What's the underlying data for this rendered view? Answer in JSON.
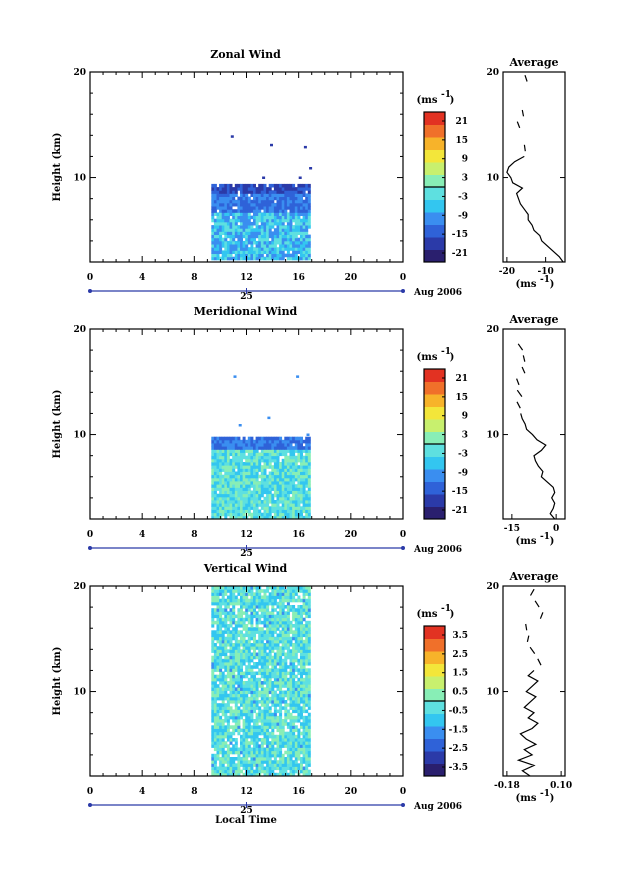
{
  "xlabel": "Local Time",
  "date_label": "Aug 2006",
  "day_label": "25",
  "ylabel": "Height (km)",
  "units": "(ms",
  "units_exp": "-1",
  "average_title": "Average",
  "colors": [
    "#2a1f6e",
    "#2b3aa8",
    "#2f62d8",
    "#3a8ef0",
    "#33c6f0",
    "#5ee0e0",
    "#88eeb6",
    "#c8f06e",
    "#f3e63a",
    "#f7b32a",
    "#f0702a",
    "#e23222"
  ],
  "chart_data": [
    {
      "type": "heatmap",
      "title": "Zonal Wind",
      "x_ticks": [
        "0",
        "4",
        "8",
        "12",
        "16",
        "20",
        "0"
      ],
      "y_ticks": [
        "20",
        "10"
      ],
      "xlim": [
        0,
        24
      ],
      "ylim": [
        2,
        20
      ],
      "colorbar_ticks": [
        "21",
        "15",
        "9",
        "3",
        "-3",
        "-9",
        "-15",
        "-21"
      ],
      "colorbar_range": [
        -24,
        24
      ],
      "data_extent": {
        "x": [
          9.3,
          16.9
        ],
        "y": [
          2.2,
          9.3
        ]
      },
      "profile": {
        "xticks": [
          "-20",
          "-10"
        ],
        "xlim": [
          -21,
          -5
        ],
        "height": [
          2.0,
          2.5,
          3.0,
          3.5,
          4.0,
          4.5,
          5.0,
          5.5,
          6.0,
          6.5,
          7.0,
          7.5,
          8.0,
          8.5,
          9.0,
          9.5,
          10.0,
          10.5,
          11.0,
          11.5,
          12.0
        ],
        "value": [
          -5.5,
          -6.5,
          -8.0,
          -9.5,
          -11.0,
          -11.5,
          -13.0,
          -13.5,
          -14.5,
          -14.5,
          -15.5,
          -16.5,
          -17.0,
          -17.5,
          -16.0,
          -18.5,
          -19.0,
          -20.0,
          -19.5,
          -18.0,
          -15.5
        ]
      }
    },
    {
      "type": "heatmap",
      "title": "Meridional Wind",
      "x_ticks": [
        "0",
        "4",
        "8",
        "12",
        "16",
        "20",
        "0"
      ],
      "y_ticks": [
        "20",
        "10"
      ],
      "xlim": [
        0,
        24
      ],
      "ylim": [
        2,
        20
      ],
      "colorbar_ticks": [
        "21",
        "15",
        "9",
        "3",
        "-3",
        "-9",
        "-15",
        "-21"
      ],
      "colorbar_range": [
        -24,
        24
      ],
      "data_extent": {
        "x": [
          9.3,
          16.9
        ],
        "y": [
          2.0,
          9.6
        ]
      },
      "profile": {
        "xticks": [
          "-15",
          "0"
        ],
        "xlim": [
          -18,
          3
        ],
        "height": [
          2.0,
          2.5,
          3.0,
          3.5,
          4.0,
          4.5,
          5.0,
          5.5,
          6.0,
          6.5,
          7.0,
          7.5,
          8.0,
          8.5,
          9.0,
          9.5,
          10.0,
          10.5,
          11.0,
          11.5,
          12.0
        ],
        "value": [
          -0.5,
          -2.0,
          -1.0,
          -0.5,
          -1.5,
          -0.5,
          -1.0,
          -3.0,
          -5.0,
          -4.5,
          -6.0,
          -7.0,
          -7.5,
          -5.0,
          -3.5,
          -6.5,
          -8.0,
          -10.0,
          -10.5,
          -11.5,
          -12.0
        ]
      }
    },
    {
      "type": "heatmap",
      "title": "Vertical Wind",
      "x_ticks": [
        "0",
        "4",
        "8",
        "12",
        "16",
        "20",
        "0"
      ],
      "y_ticks": [
        "20",
        "10"
      ],
      "xlim": [
        0,
        24
      ],
      "ylim": [
        2,
        20
      ],
      "colorbar_ticks": [
        "3.5",
        "2.5",
        "1.5",
        "0.5",
        "-0.5",
        "-1.5",
        "-2.5",
        "-3.5"
      ],
      "colorbar_range": [
        -4,
        4
      ],
      "data_extent": {
        "x": [
          9.3,
          16.9
        ],
        "y": [
          2.0,
          20.0
        ]
      },
      "profile": {
        "xticks": [
          "-0.18",
          "0.10"
        ],
        "xlim": [
          -0.2,
          0.12
        ],
        "height": [
          2.0,
          2.5,
          3.0,
          3.5,
          4.0,
          4.5,
          5.0,
          5.5,
          6.0,
          6.5,
          7.0,
          7.5,
          8.0,
          8.5,
          9.0,
          9.5,
          10.0,
          10.5,
          11.0,
          11.5,
          12.0
        ],
        "value": [
          -0.06,
          -0.1,
          -0.04,
          -0.12,
          -0.05,
          -0.09,
          -0.03,
          -0.08,
          -0.11,
          -0.05,
          -0.02,
          -0.07,
          -0.04,
          -0.09,
          -0.06,
          -0.03,
          -0.08,
          -0.05,
          -0.02,
          -0.07,
          -0.04
        ]
      }
    }
  ]
}
